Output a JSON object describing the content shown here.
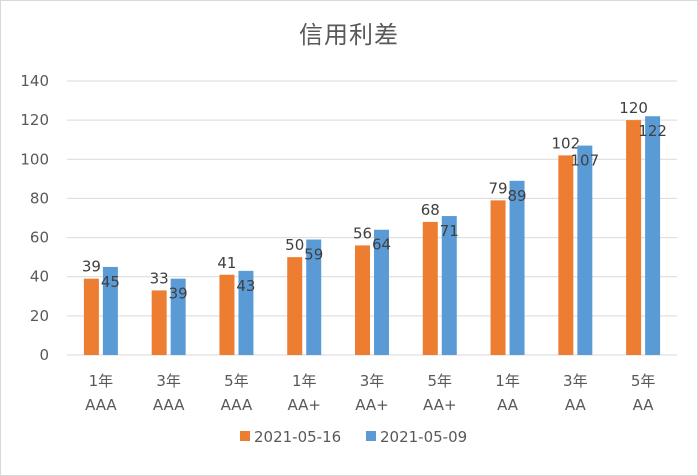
{
  "chart_data": {
    "type": "bar",
    "title": "信用利差",
    "categories": [
      [
        "1年",
        "AAA"
      ],
      [
        "3年",
        "AAA"
      ],
      [
        "5年",
        "AAA"
      ],
      [
        "1年",
        "AA+"
      ],
      [
        "3年",
        "AA+"
      ],
      [
        "5年",
        "AA+"
      ],
      [
        "1年",
        "AA"
      ],
      [
        "3年",
        "AA"
      ],
      [
        "5年",
        "AA"
      ]
    ],
    "series": [
      {
        "name": "2021-05-16",
        "color": "#ED7D31",
        "values": [
          39,
          33,
          41,
          50,
          56,
          68,
          79,
          102,
          120
        ]
      },
      {
        "name": "2021-05-09",
        "color": "#5B9BD5",
        "values": [
          45,
          39,
          43,
          59,
          64,
          71,
          89,
          107,
          122
        ]
      }
    ],
    "ylim": [
      0,
      140
    ],
    "yticks": [
      0,
      20,
      40,
      60,
      80,
      100,
      120,
      140
    ],
    "grid": true,
    "legend": "bottom",
    "data_labels": true
  }
}
